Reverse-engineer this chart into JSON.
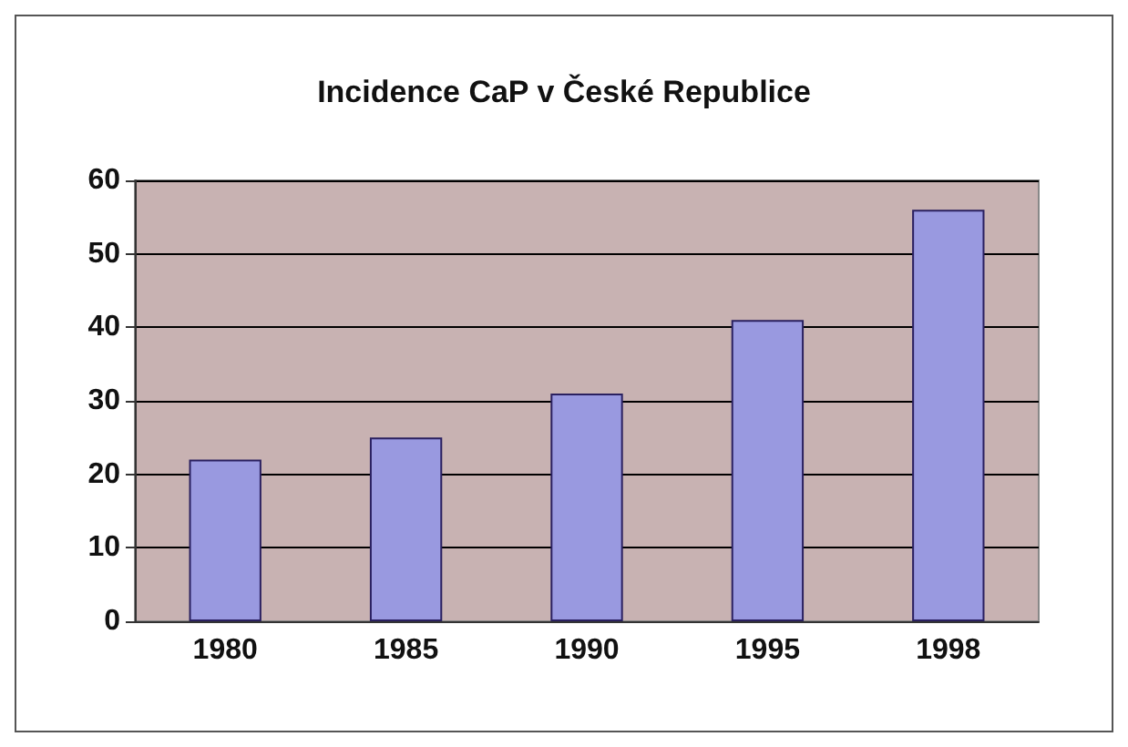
{
  "chart_data": {
    "type": "bar",
    "title": "Incidence CaP v České Republice",
    "categories": [
      "1980",
      "1985",
      "1990",
      "1995",
      "1998"
    ],
    "values": [
      22,
      25,
      31,
      41,
      56
    ],
    "color": "#9999e0",
    "ylim": [
      0,
      60
    ],
    "yticks": [
      0,
      10,
      20,
      30,
      40,
      50,
      60
    ],
    "grid": "y"
  }
}
